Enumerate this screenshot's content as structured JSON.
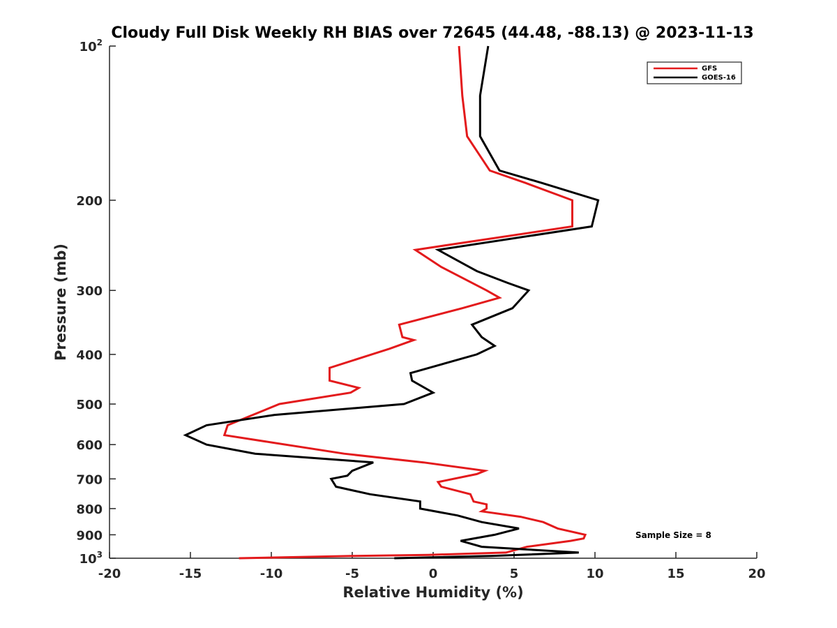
{
  "chart_data": {
    "type": "line",
    "title": "Cloudy Full Disk Weekly RH BIAS over 72645 (44.48, -88.13) @ 2023-11-13",
    "xlabel": "Relative Humidity (%)",
    "ylabel": "Pressure (mb)",
    "xlim": [
      -20,
      20
    ],
    "ylim": [
      100,
      1000
    ],
    "y_scale": "log",
    "y_reversed": true,
    "x_ticks": [
      "-20",
      "-15",
      "-10",
      "-5",
      "0",
      "5",
      "10",
      "15",
      "20"
    ],
    "y_ticks": [
      {
        "value": 100,
        "base": "10",
        "exp": "2"
      },
      {
        "value": 200,
        "base": "200",
        "exp": ""
      },
      {
        "value": 300,
        "base": "300",
        "exp": ""
      },
      {
        "value": 400,
        "base": "400",
        "exp": ""
      },
      {
        "value": 500,
        "base": "500",
        "exp": ""
      },
      {
        "value": 600,
        "base": "600",
        "exp": ""
      },
      {
        "value": 700,
        "base": "700",
        "exp": ""
      },
      {
        "value": 800,
        "base": "800",
        "exp": ""
      },
      {
        "value": 900,
        "base": "900",
        "exp": ""
      },
      {
        "value": 1000,
        "base": "10",
        "exp": "3"
      }
    ],
    "grid": false,
    "legend_position": "top-right",
    "annotation": "Sample Size = 8",
    "series": [
      {
        "name": "GFS",
        "color": "#e31a1c",
        "points": [
          [
            1.6,
            100
          ],
          [
            1.8,
            125
          ],
          [
            2.1,
            150
          ],
          [
            3.5,
            175
          ],
          [
            5.7,
            185
          ],
          [
            8.6,
            200
          ],
          [
            8.6,
            225
          ],
          [
            -1.1,
            250
          ],
          [
            0.5,
            270
          ],
          [
            3.3,
            300
          ],
          [
            4.1,
            310
          ],
          [
            1.8,
            325
          ],
          [
            -2.1,
            350
          ],
          [
            -1.9,
            370
          ],
          [
            -1.2,
            375
          ],
          [
            -2.7,
            390
          ],
          [
            -6.4,
            425
          ],
          [
            -6.4,
            450
          ],
          [
            -4.6,
            465
          ],
          [
            -5.1,
            475
          ],
          [
            -9.5,
            500
          ],
          [
            -12.7,
            550
          ],
          [
            -12.9,
            575
          ],
          [
            -5.5,
            625
          ],
          [
            -0.6,
            650
          ],
          [
            3.2,
            675
          ],
          [
            2.7,
            685
          ],
          [
            0.3,
            710
          ],
          [
            0.5,
            725
          ],
          [
            2.3,
            750
          ],
          [
            2.5,
            775
          ],
          [
            3.3,
            785
          ],
          [
            3.3,
            800
          ],
          [
            3.0,
            810
          ],
          [
            5.4,
            830
          ],
          [
            6.8,
            850
          ],
          [
            7.7,
            875
          ],
          [
            9.4,
            900
          ],
          [
            9.3,
            915
          ],
          [
            8.5,
            925
          ],
          [
            5.8,
            950
          ],
          [
            4.5,
            975
          ],
          [
            -0.3,
            985
          ],
          [
            -5.0,
            990
          ],
          [
            -12.0,
            1000
          ]
        ]
      },
      {
        "name": "GOES-16",
        "color": "#000000",
        "points": [
          [
            3.4,
            100
          ],
          [
            2.9,
            125
          ],
          [
            2.9,
            150
          ],
          [
            4.1,
            175
          ],
          [
            6.7,
            185
          ],
          [
            10.2,
            200
          ],
          [
            9.8,
            225
          ],
          [
            0.3,
            250
          ],
          [
            2.7,
            275
          ],
          [
            4.6,
            290
          ],
          [
            5.9,
            300
          ],
          [
            4.9,
            325
          ],
          [
            2.4,
            350
          ],
          [
            3.0,
            370
          ],
          [
            3.8,
            385
          ],
          [
            2.7,
            400
          ],
          [
            -1.4,
            435
          ],
          [
            -1.3,
            450
          ],
          [
            0.0,
            475
          ],
          [
            -1.8,
            500
          ],
          [
            -9.8,
            525
          ],
          [
            -14.0,
            550
          ],
          [
            -15.3,
            575
          ],
          [
            -14.0,
            600
          ],
          [
            -11.0,
            625
          ],
          [
            -3.7,
            650
          ],
          [
            -5.0,
            675
          ],
          [
            -5.3,
            690
          ],
          [
            -6.3,
            700
          ],
          [
            -6.0,
            725
          ],
          [
            -3.9,
            750
          ],
          [
            -0.8,
            775
          ],
          [
            -0.8,
            800
          ],
          [
            1.5,
            825
          ],
          [
            3.0,
            850
          ],
          [
            5.3,
            875
          ],
          [
            3.8,
            900
          ],
          [
            1.7,
            925
          ],
          [
            3.0,
            950
          ],
          [
            9.0,
            975
          ],
          [
            3.6,
            990
          ],
          [
            -2.4,
            1000
          ]
        ]
      }
    ]
  }
}
